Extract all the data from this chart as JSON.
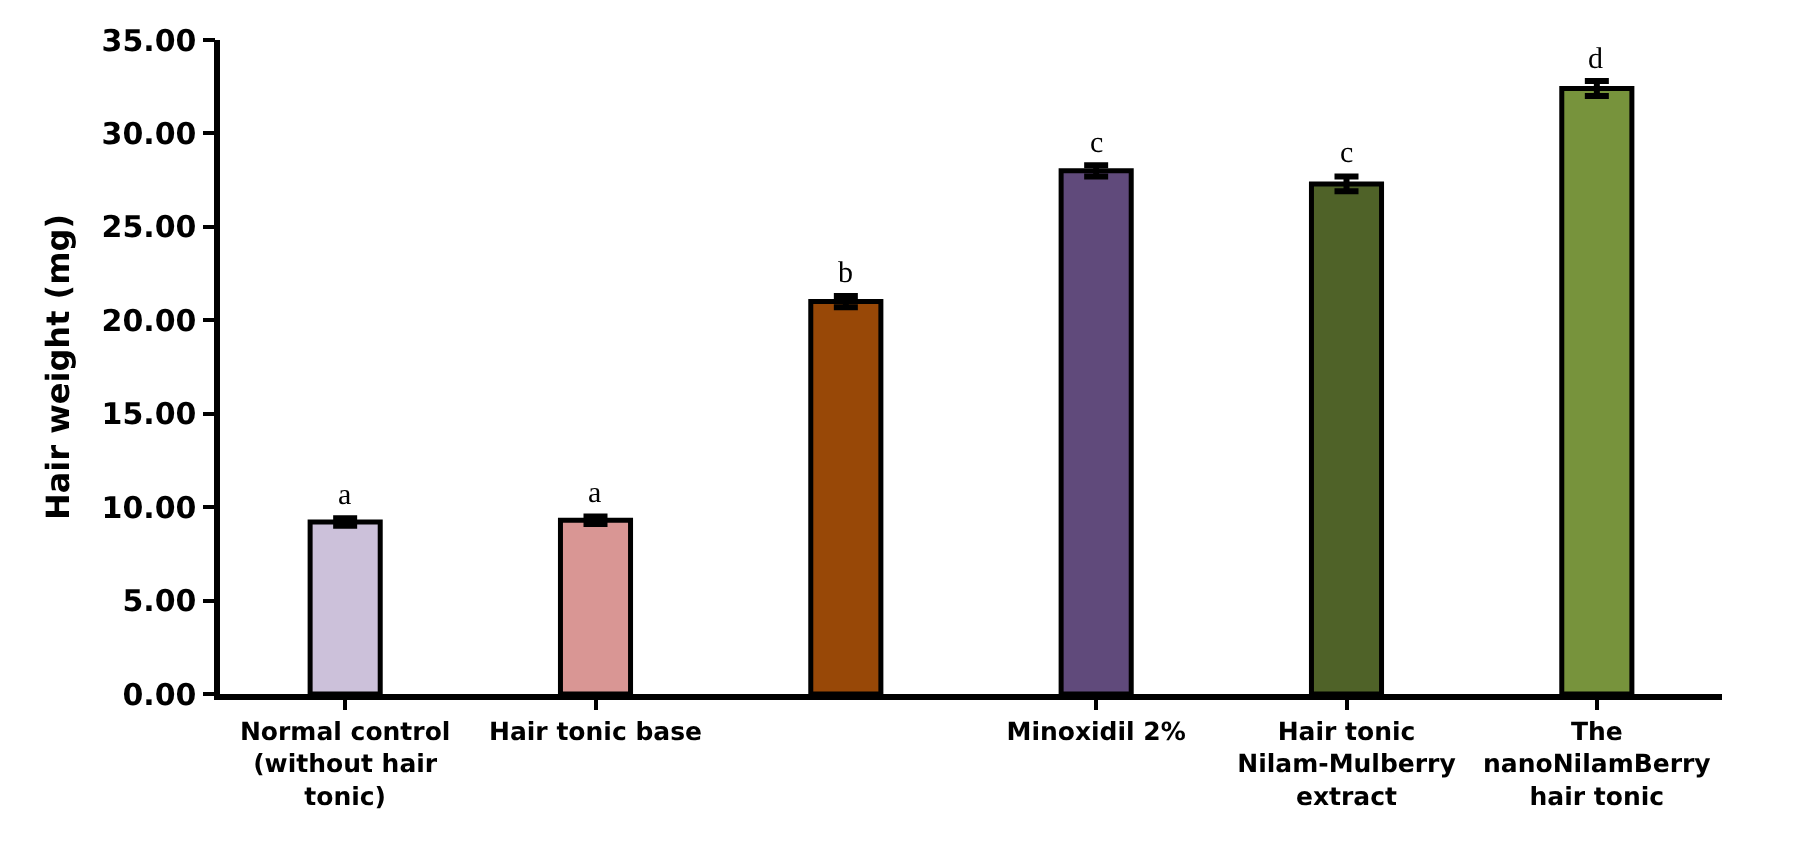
{
  "chart_data": {
    "type": "bar",
    "ylabel": "Hair weight (mg)",
    "categories": [
      "Normal control (without hair tonic)",
      "Hair tonic base",
      null,
      "Minoxidil 2%",
      "Hair tonic Nilam-Mulberry extract",
      "The nanoNilamBerry hair tonic"
    ],
    "values": [
      9.2,
      9.3,
      21.0,
      28.0,
      27.3,
      32.4
    ],
    "errors": [
      0.2,
      0.2,
      0.3,
      0.3,
      0.4,
      0.4
    ],
    "colors": [
      "#ccc1da",
      "#d99694",
      "#984807",
      "#604a7b",
      "#4f6228",
      "#77933c"
    ],
    "value_labels": [
      "a",
      "a",
      "b",
      "c",
      "c",
      "d"
    ],
    "ylim": [
      0,
      35
    ],
    "yticks": [
      {
        "value": 0,
        "label": "0.00"
      },
      {
        "value": 5,
        "label": "5.00"
      },
      {
        "value": 10,
        "label": "10.00"
      },
      {
        "value": 15,
        "label": "15.00"
      },
      {
        "value": 20,
        "label": "20.00"
      },
      {
        "value": 25,
        "label": "25.00"
      },
      {
        "value": 30,
        "label": "30.00"
      },
      {
        "value": 35,
        "label": "35.00"
      }
    ],
    "grid": false
  }
}
